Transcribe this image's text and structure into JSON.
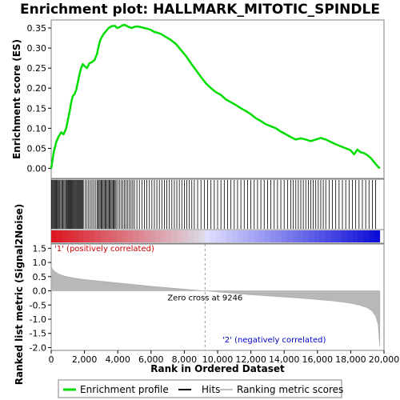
{
  "chart_data": [
    {
      "type": "line",
      "panel": "enrichment",
      "title": "Enrichment plot: HALLMARK_MITOTIC_SPINDLE",
      "ylabel": "Enrichment score (ES)",
      "xlim": [
        0,
        20000
      ],
      "ylim": [
        -0.025,
        0.37
      ],
      "yticks": [
        "0.00",
        "0.05",
        "0.10",
        "0.15",
        "0.20",
        "0.25",
        "0.30",
        "0.35"
      ],
      "series": [
        {
          "name": "Enrichment profile",
          "color": "#00dd00",
          "x": [
            0,
            150,
            300,
            450,
            600,
            750,
            900,
            1000,
            1100,
            1200,
            1300,
            1400,
            1500,
            1600,
            1700,
            1800,
            1900,
            2000,
            2150,
            2300,
            2450,
            2600,
            2750,
            2850,
            2950,
            3050,
            3150,
            3250,
            3350,
            3450,
            3550,
            3650,
            3750,
            3850,
            3950,
            4100,
            4250,
            4400,
            4550,
            4700,
            4850,
            5000,
            5200,
            5400,
            5600,
            5800,
            6000,
            6200,
            6400,
            6600,
            6800,
            7000,
            7200,
            7500,
            7800,
            8100,
            8400,
            8700,
            9000,
            9300,
            9600,
            9900,
            10200,
            10500,
            10800,
            11100,
            11400,
            11700,
            12000,
            12300,
            12600,
            12900,
            13200,
            13500,
            13800,
            14100,
            14400,
            14700,
            15000,
            15300,
            15600,
            15900,
            16200,
            16500,
            16800,
            17100,
            17400,
            17700,
            18000,
            18200,
            18400,
            18600,
            18800,
            19000,
            19200,
            19400,
            19600,
            19750
          ],
          "values": [
            0.0,
            0.04,
            0.065,
            0.08,
            0.09,
            0.085,
            0.1,
            0.12,
            0.14,
            0.165,
            0.18,
            0.185,
            0.195,
            0.215,
            0.235,
            0.25,
            0.26,
            0.255,
            0.25,
            0.262,
            0.265,
            0.27,
            0.285,
            0.305,
            0.32,
            0.328,
            0.335,
            0.34,
            0.345,
            0.35,
            0.352,
            0.355,
            0.355,
            0.355,
            0.35,
            0.352,
            0.356,
            0.358,
            0.355,
            0.352,
            0.35,
            0.353,
            0.354,
            0.352,
            0.35,
            0.348,
            0.345,
            0.34,
            0.338,
            0.335,
            0.33,
            0.325,
            0.32,
            0.31,
            0.295,
            0.28,
            0.262,
            0.245,
            0.228,
            0.212,
            0.2,
            0.19,
            0.183,
            0.172,
            0.165,
            0.158,
            0.15,
            0.143,
            0.135,
            0.125,
            0.118,
            0.11,
            0.105,
            0.1,
            0.092,
            0.085,
            0.078,
            0.072,
            0.075,
            0.072,
            0.068,
            0.072,
            0.076,
            0.072,
            0.066,
            0.06,
            0.055,
            0.05,
            0.045,
            0.035,
            0.047,
            0.04,
            0.038,
            0.033,
            0.026,
            0.016,
            0.006,
            0.0
          ]
        }
      ],
      "hits": [
        20,
        60,
        110,
        160,
        210,
        260,
        310,
        360,
        420,
        470,
        520,
        580,
        640,
        700,
        760,
        820,
        880,
        930,
        980,
        1030,
        1080,
        1130,
        1180,
        1230,
        1280,
        1330,
        1380,
        1430,
        1480,
        1530,
        1580,
        1630,
        1680,
        1730,
        1780,
        1830,
        1880,
        1930,
        2050,
        2150,
        2250,
        2350,
        2450,
        2550,
        2650,
        2750,
        2820,
        2880,
        2940,
        3000,
        3060,
        3120,
        3180,
        3240,
        3300,
        3360,
        3420,
        3480,
        3540,
        3600,
        3660,
        3720,
        3780,
        3840,
        3900,
        4000,
        4100,
        4200,
        4300,
        4400,
        4500,
        4600,
        4700,
        4800,
        4900,
        5000,
        5150,
        5300,
        5450,
        5600,
        5750,
        5900,
        6050,
        6200,
        6350,
        6500,
        6650,
        6800,
        6950,
        7100,
        7250,
        7400,
        7550,
        7700,
        7850,
        8000,
        8150,
        8300,
        8450,
        8600,
        8800,
        9000,
        9200,
        9400,
        9600,
        9800,
        10000,
        10200,
        10400,
        10600,
        10800,
        11000,
        11200,
        11400,
        11600,
        11800,
        12000,
        12200,
        12400,
        12600,
        12800,
        13000,
        13200,
        13400,
        13600,
        13800,
        14000,
        14200,
        14400,
        14550,
        14700,
        14850,
        15000,
        15150,
        15300,
        15450,
        15600,
        15750,
        15900,
        16050,
        16200,
        16350,
        16500,
        16700,
        16900,
        17100,
        17300,
        17500,
        17700,
        17900,
        18100,
        18300,
        18500,
        18700,
        18900,
        19100,
        19300,
        19500
      ]
    },
    {
      "type": "area",
      "panel": "ranked-list",
      "ylabel": "Ranked list metric (Signal2Noise)",
      "xlabel": "Rank in Ordered Dataset",
      "xlim": [
        0,
        20000
      ],
      "ylim": [
        -2.1,
        1.65
      ],
      "yticks": [
        "-2.0",
        "-1.5",
        "-1.0",
        "-0.5",
        "0.0",
        "0.5",
        "1.0",
        "1.5"
      ],
      "xticks": [
        "0",
        "2,000",
        "4,000",
        "6,000",
        "8,000",
        "10,000",
        "12,000",
        "14,000",
        "16,000",
        "18,000",
        "20,000"
      ],
      "x": [
        0,
        50,
        150,
        300,
        500,
        800,
        1200,
        1700,
        2300,
        3000,
        4000,
        5000,
        6000,
        7000,
        8000,
        9000,
        9246,
        10000,
        11000,
        12000,
        13000,
        14000,
        15000,
        16000,
        17000,
        18000,
        18500,
        19000,
        19300,
        19500,
        19650,
        19750
      ],
      "values": [
        0.85,
        0.8,
        0.72,
        0.65,
        0.58,
        0.52,
        0.47,
        0.42,
        0.38,
        0.34,
        0.28,
        0.22,
        0.16,
        0.11,
        0.06,
        0.01,
        0.0,
        -0.04,
        -0.09,
        -0.14,
        -0.18,
        -0.22,
        -0.26,
        -0.31,
        -0.36,
        -0.44,
        -0.5,
        -0.6,
        -0.72,
        -0.9,
        -1.2,
        -1.95
      ],
      "zero_cross_label": "Zero cross at 9246",
      "zero_cross": 9246,
      "pos_label": "'1' (positively correlated)",
      "neg_label": "'2' (negatively correlated)",
      "pos_color": "#cc0000",
      "neg_color": "#0000cc"
    }
  ],
  "legend": {
    "items": [
      {
        "label": "Enrichment profile",
        "color": "#00dd00"
      },
      {
        "label": "Hits",
        "color": "#000000"
      },
      {
        "label": "Ranking metric scores",
        "color": "#c0c0c0"
      }
    ]
  }
}
